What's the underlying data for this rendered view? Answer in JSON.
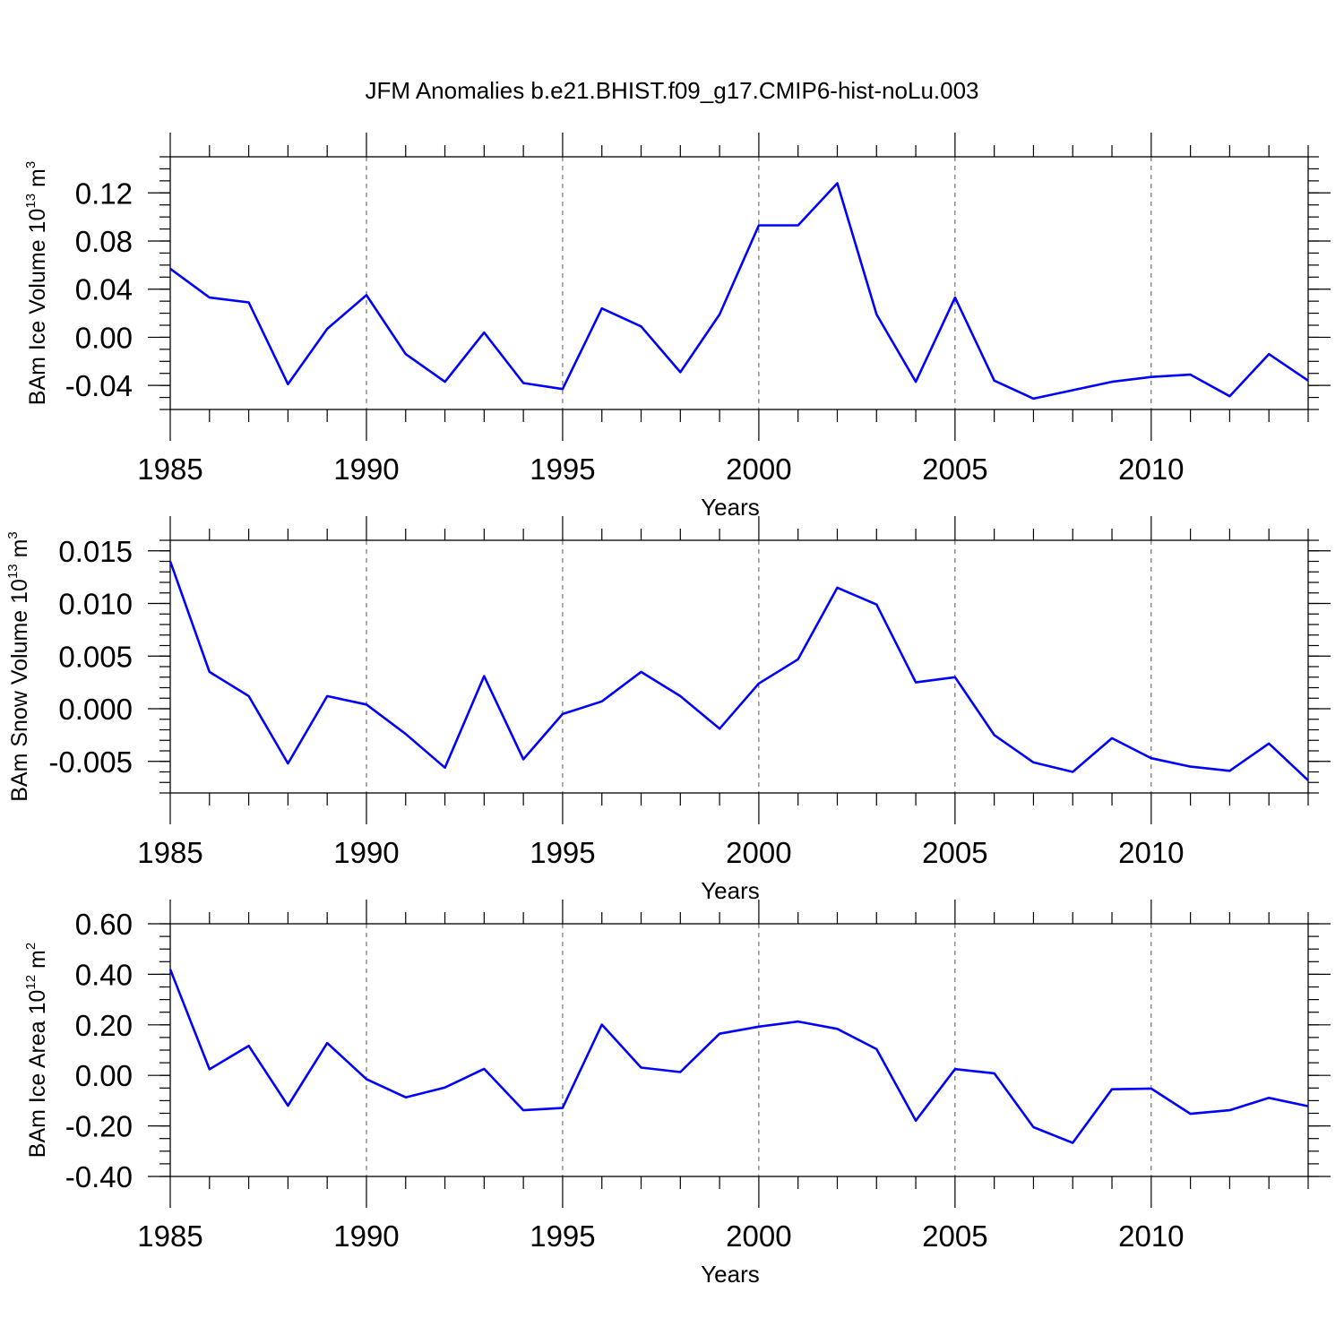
{
  "title": "JFM Anomalies b.e21.BHIST.f09_g17.CMIP6-hist-noLu.003",
  "line_color": "#0000ff",
  "chart_data": [
    {
      "type": "line",
      "id": "ice-volume",
      "title": "",
      "xlabel": "Years",
      "ylabel": {
        "main": "BAm Ice Volume 10",
        "sup": "13",
        "unit": " m",
        "unit_sup": "3"
      },
      "xlim": [
        1985,
        2014
      ],
      "ylim": [
        -0.06,
        0.15
      ],
      "x_ticks": [
        1985,
        1990,
        1995,
        2000,
        2005,
        2010
      ],
      "y_ticks": [
        -0.04,
        0.0,
        0.04,
        0.08,
        0.12
      ],
      "y_tick_labels": [
        "-0.04",
        "0.00",
        "0.04",
        "0.08",
        "0.12"
      ],
      "y_minor_step": 0.01,
      "x": [
        1985,
        1986,
        1987,
        1988,
        1989,
        1990,
        1991,
        1992,
        1993,
        1994,
        1995,
        1996,
        1997,
        1998,
        1999,
        2000,
        2001,
        2002,
        2003,
        2004,
        2005,
        2006,
        2007,
        2008,
        2009,
        2010,
        2011,
        2012,
        2013,
        2014
      ],
      "series": [
        {
          "name": "BAm Ice Volume",
          "values": [
            0.057,
            0.033,
            0.029,
            -0.039,
            0.007,
            0.035,
            -0.014,
            -0.037,
            0.004,
            -0.038,
            -0.043,
            0.024,
            0.009,
            -0.029,
            0.019,
            0.093,
            0.093,
            0.128,
            0.019,
            -0.037,
            0.033,
            -0.036,
            -0.051,
            -0.044,
            -0.037,
            -0.033,
            -0.031,
            -0.049,
            -0.014,
            -0.036
          ]
        }
      ]
    },
    {
      "type": "line",
      "id": "snow-volume",
      "title": "",
      "xlabel": "Years",
      "ylabel": {
        "main": "BAm Snow Volume 10",
        "sup": "13",
        "unit": " m",
        "unit_sup": "3"
      },
      "xlim": [
        1985,
        2014
      ],
      "ylim": [
        -0.008,
        0.016
      ],
      "x_ticks": [
        1985,
        1990,
        1995,
        2000,
        2005,
        2010
      ],
      "y_ticks": [
        -0.005,
        0.0,
        0.005,
        0.01,
        0.015
      ],
      "y_tick_labels": [
        "-0.005",
        "0.000",
        "0.005",
        "0.010",
        "0.015"
      ],
      "y_minor_step": 0.001,
      "x": [
        1985,
        1986,
        1987,
        1988,
        1989,
        1990,
        1991,
        1992,
        1993,
        1994,
        1995,
        1996,
        1997,
        1998,
        1999,
        2000,
        2001,
        2002,
        2003,
        2004,
        2005,
        2006,
        2007,
        2008,
        2009,
        2010,
        2011,
        2012,
        2013,
        2014
      ],
      "series": [
        {
          "name": "BAm Snow Volume",
          "values": [
            0.014,
            0.0035,
            0.0012,
            -0.0052,
            0.0012,
            0.0004,
            -0.0024,
            -0.0056,
            0.0031,
            -0.0048,
            -0.0005,
            0.0007,
            0.0035,
            0.0012,
            -0.0019,
            0.0024,
            0.0047,
            0.0115,
            0.0099,
            0.0025,
            0.003,
            -0.0025,
            -0.0051,
            -0.006,
            -0.0028,
            -0.0047,
            -0.0055,
            -0.0059,
            -0.0033,
            -0.0068
          ]
        }
      ]
    },
    {
      "type": "line",
      "id": "ice-area",
      "title": "",
      "xlabel": "Years",
      "ylabel": {
        "main": "BAm Ice Area 10",
        "sup": "12",
        "unit": " m",
        "unit_sup": "2"
      },
      "xlim": [
        1985,
        2014
      ],
      "ylim": [
        -0.4,
        0.6
      ],
      "x_ticks": [
        1985,
        1990,
        1995,
        2000,
        2005,
        2010
      ],
      "y_ticks": [
        -0.4,
        -0.2,
        0.0,
        0.2,
        0.4,
        0.6
      ],
      "y_tick_labels": [
        "-0.40",
        "-0.20",
        "0.00",
        "0.20",
        "0.40",
        "0.60"
      ],
      "y_minor_step": 0.05,
      "x": [
        1985,
        1986,
        1987,
        1988,
        1989,
        1990,
        1991,
        1992,
        1993,
        1994,
        1995,
        1996,
        1997,
        1998,
        1999,
        2000,
        2001,
        2002,
        2003,
        2004,
        2005,
        2006,
        2007,
        2008,
        2009,
        2010,
        2011,
        2012,
        2013,
        2014
      ],
      "series": [
        {
          "name": "BAm Ice Area",
          "values": [
            0.42,
            0.024,
            0.117,
            -0.12,
            0.128,
            -0.015,
            -0.087,
            -0.048,
            0.026,
            -0.138,
            -0.129,
            0.201,
            0.031,
            0.013,
            0.165,
            0.193,
            0.213,
            0.184,
            0.104,
            -0.179,
            0.025,
            0.008,
            -0.205,
            -0.267,
            -0.055,
            -0.052,
            -0.152,
            -0.138,
            -0.089,
            -0.122
          ]
        }
      ]
    }
  ]
}
